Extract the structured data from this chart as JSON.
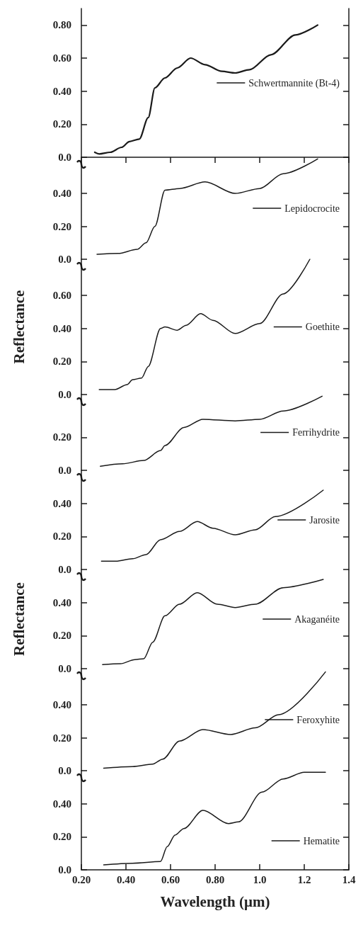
{
  "chart_data": [
    {
      "type": "line",
      "xlim": [
        0.2,
        1.4
      ],
      "ylim": [
        0,
        0.9
      ],
      "yticks": [
        {
          "value": 0,
          "label": "0.0"
        },
        {
          "value": 0.2,
          "label": "0.20"
        },
        {
          "value": 0.4,
          "label": "0.40"
        },
        {
          "value": 0.6,
          "label": "0.60"
        },
        {
          "value": 0.8,
          "label": "0.80"
        }
      ],
      "tick_labels": "y",
      "legend": "right",
      "marker": "none",
      "series": [
        {
          "name": "Schwertmannite (Bt-4)",
          "color": "#1a1a1a",
          "x": [
            0.26,
            0.28,
            0.33,
            0.38,
            0.416,
            0.46,
            0.5,
            0.53,
            0.575,
            0.63,
            0.69,
            0.755,
            0.83,
            0.89,
            0.955,
            1.05,
            1.16,
            1.26
          ],
          "values": [
            0.03,
            0.02,
            0.03,
            0.06,
            0.095,
            0.11,
            0.24,
            0.42,
            0.48,
            0.54,
            0.6,
            0.56,
            0.52,
            0.51,
            0.53,
            0.62,
            0.74,
            0.8
          ]
        }
      ]
    },
    {
      "type": "line",
      "xlim": [
        0.2,
        1.4
      ],
      "ylim": [
        0,
        0.62
      ],
      "yticks": [
        {
          "value": 0,
          "label": "0.0"
        },
        {
          "value": 0.2,
          "label": "0.20"
        },
        {
          "value": 0.4,
          "label": "0.40"
        }
      ],
      "tick_labels": "y",
      "legend": "right",
      "marker": "none",
      "series": [
        {
          "name": "Lepidocrocite",
          "color": "#1a1a1a",
          "x": [
            0.27,
            0.365,
            0.45,
            0.49,
            0.53,
            0.575,
            0.64,
            0.755,
            0.89,
            1.0,
            1.105,
            1.26
          ],
          "values": [
            0.03,
            0.035,
            0.06,
            0.1,
            0.2,
            0.42,
            0.43,
            0.47,
            0.4,
            0.43,
            0.52,
            0.61
          ]
        }
      ]
    },
    {
      "type": "line",
      "xlim": [
        0.2,
        1.4
      ],
      "ylim": [
        0,
        0.82
      ],
      "yticks": [
        {
          "value": 0,
          "label": "0.0"
        },
        {
          "value": 0.2,
          "label": "0.20"
        },
        {
          "value": 0.4,
          "label": "0.40"
        },
        {
          "value": 0.6,
          "label": "0.60"
        }
      ],
      "tick_labels": "y",
      "legend": "right",
      "marker": "none",
      "ylabel": "Reflectance",
      "series": [
        {
          "name": "Goethite",
          "color": "#1a1a1a",
          "x": [
            0.28,
            0.35,
            0.405,
            0.43,
            0.47,
            0.5,
            0.555,
            0.575,
            0.63,
            0.67,
            0.735,
            0.79,
            0.89,
            1.0,
            1.105,
            1.225
          ],
          "values": [
            0.03,
            0.03,
            0.06,
            0.09,
            0.1,
            0.17,
            0.4,
            0.41,
            0.39,
            0.42,
            0.49,
            0.45,
            0.37,
            0.43,
            0.61,
            0.82
          ]
        }
      ]
    },
    {
      "type": "line",
      "xlim": [
        0.2,
        1.4
      ],
      "ylim": [
        0,
        0.46
      ],
      "yticks": [
        {
          "value": 0,
          "label": "0.0"
        },
        {
          "value": 0.2,
          "label": "0.20"
        }
      ],
      "tick_labels": "y",
      "legend": "right",
      "marker": "none",
      "series": [
        {
          "name": "Ferrihydrite",
          "color": "#1a1a1a",
          "x": [
            0.285,
            0.385,
            0.48,
            0.555,
            0.575,
            0.66,
            0.745,
            0.89,
            1.0,
            1.105,
            1.28
          ],
          "values": [
            0.025,
            0.04,
            0.06,
            0.12,
            0.15,
            0.26,
            0.31,
            0.3,
            0.31,
            0.36,
            0.45
          ]
        }
      ]
    },
    {
      "type": "line",
      "xlim": [
        0.2,
        1.4
      ],
      "ylim": [
        0,
        0.6
      ],
      "yticks": [
        {
          "value": 0,
          "label": "0.0"
        },
        {
          "value": 0.2,
          "label": "0.20"
        },
        {
          "value": 0.4,
          "label": "0.40"
        }
      ],
      "tick_labels": "y",
      "legend": "right",
      "marker": "none",
      "series": [
        {
          "name": "Jarosite",
          "color": "#1a1a1a",
          "x": [
            0.29,
            0.355,
            0.43,
            0.49,
            0.555,
            0.64,
            0.72,
            0.79,
            0.89,
            0.98,
            1.07,
            1.285
          ],
          "values": [
            0.05,
            0.05,
            0.065,
            0.09,
            0.18,
            0.23,
            0.29,
            0.25,
            0.21,
            0.24,
            0.32,
            0.48
          ]
        }
      ]
    },
    {
      "type": "line",
      "xlim": [
        0.2,
        1.4
      ],
      "ylim": [
        0,
        0.6
      ],
      "yticks": [
        {
          "value": 0,
          "label": "0.0"
        },
        {
          "value": 0.2,
          "label": "0.20"
        },
        {
          "value": 0.4,
          "label": "0.40"
        }
      ],
      "tick_labels": "y",
      "legend": "right",
      "marker": "none",
      "ylabel": "Reflectance",
      "series": [
        {
          "name": "Akaganéite",
          "color": "#1a1a1a",
          "x": [
            0.295,
            0.375,
            0.44,
            0.48,
            0.52,
            0.575,
            0.64,
            0.72,
            0.81,
            0.89,
            0.98,
            1.105,
            1.285
          ],
          "values": [
            0.025,
            0.03,
            0.055,
            0.06,
            0.16,
            0.32,
            0.39,
            0.46,
            0.39,
            0.37,
            0.39,
            0.49,
            0.54
          ]
        }
      ]
    },
    {
      "type": "line",
      "xlim": [
        0.2,
        1.4
      ],
      "ylim": [
        0,
        0.62
      ],
      "yticks": [
        {
          "value": 0,
          "label": "0.0"
        },
        {
          "value": 0.2,
          "label": "0.20"
        },
        {
          "value": 0.4,
          "label": "0.40"
        }
      ],
      "tick_labels": "y",
      "legend": "right",
      "marker": "none",
      "series": [
        {
          "name": "Feroxyhite",
          "color": "#1a1a1a",
          "x": [
            0.3,
            0.43,
            0.52,
            0.565,
            0.64,
            0.745,
            0.87,
            0.98,
            1.085,
            1.295
          ],
          "values": [
            0.015,
            0.025,
            0.04,
            0.07,
            0.18,
            0.25,
            0.22,
            0.26,
            0.34,
            0.6
          ]
        }
      ]
    },
    {
      "type": "line",
      "xlim": [
        0.2,
        1.4
      ],
      "xticks": [
        {
          "value": 0.2,
          "label": "0.20"
        },
        {
          "value": 0.4,
          "label": "0.40"
        },
        {
          "value": 0.6,
          "label": "0.60"
        },
        {
          "value": 0.8,
          "label": "0.80"
        },
        {
          "value": 1.0,
          "label": "1.0"
        },
        {
          "value": 1.2,
          "label": "1.2"
        },
        {
          "value": 1.4,
          "label": "1.4"
        }
      ],
      "ylim": [
        0,
        0.6
      ],
      "yticks": [
        {
          "value": 0,
          "label": "0.0"
        },
        {
          "value": 0.2,
          "label": "0.20"
        },
        {
          "value": 0.4,
          "label": "0.40"
        }
      ],
      "legend": "right",
      "marker": "none",
      "xlabel": "Wavelength (μm)",
      "series": [
        {
          "name": "Hematite",
          "color": "#1a1a1a",
          "x": [
            0.3,
            0.43,
            0.555,
            0.585,
            0.62,
            0.66,
            0.745,
            0.86,
            0.905,
            1.01,
            1.105,
            1.2,
            1.295
          ],
          "values": [
            0.03,
            0.04,
            0.05,
            0.14,
            0.21,
            0.25,
            0.36,
            0.28,
            0.29,
            0.47,
            0.55,
            0.59,
            0.59
          ]
        }
      ]
    }
  ]
}
